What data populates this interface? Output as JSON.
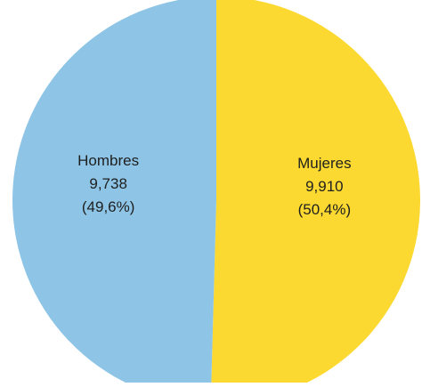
{
  "chart_data": {
    "type": "pie",
    "categories": [
      "Hombres",
      "Mujeres"
    ],
    "values": [
      9738,
      9910
    ],
    "value_labels": [
      "9,738",
      "9,910"
    ],
    "percent_labels": [
      "(49,6%)",
      "(50,4%)"
    ],
    "colors": [
      "#8ec5e6",
      "#fbd930"
    ],
    "start": "top",
    "direction": "clockwise",
    "legend": "none"
  }
}
